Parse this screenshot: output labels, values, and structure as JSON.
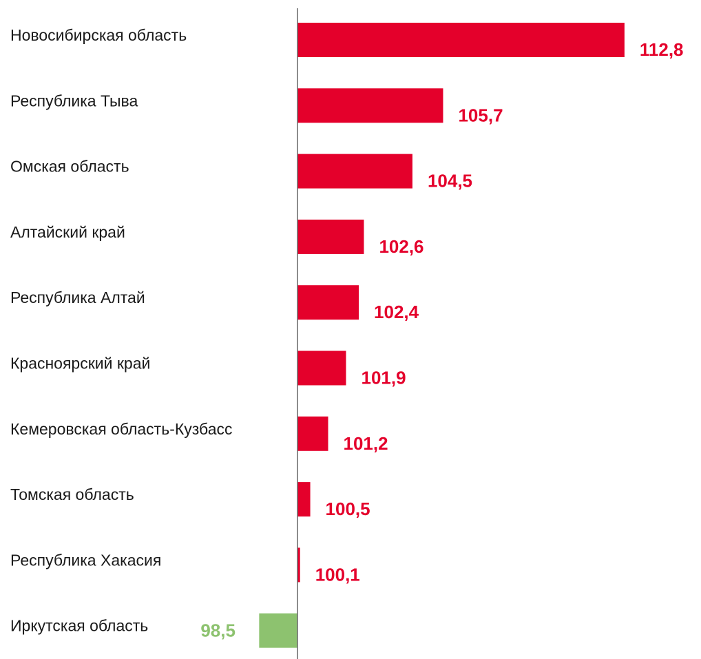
{
  "chart_data": {
    "type": "bar",
    "orientation": "horizontal",
    "baseline": 100,
    "categories": [
      "Новосибирская область",
      "Республика Тыва",
      "Омская область",
      "Алтайский край",
      "Республика Алтай",
      "Красноярский край",
      "Кемеровская область-Кузбасс",
      "Томская область",
      "Республика Хакасия",
      "Иркутская область"
    ],
    "values": [
      112.8,
      105.7,
      104.5,
      102.6,
      102.4,
      101.9,
      101.2,
      100.5,
      100.1,
      98.5
    ],
    "value_labels": [
      "112,8",
      "105,7",
      "104,5",
      "102,6",
      "102,4",
      "101,9",
      "101,2",
      "100,5",
      "100,1",
      "98,5"
    ],
    "colors": {
      "above_baseline": "#e4002b",
      "below_baseline": "#8dc26f",
      "axis": "#666666"
    },
    "title": "",
    "xlabel": "",
    "ylabel": "",
    "grid": false,
    "legend": "none"
  }
}
